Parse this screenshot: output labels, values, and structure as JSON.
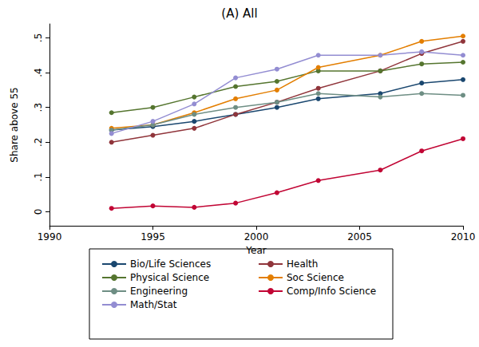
{
  "chart_data": {
    "type": "line",
    "title": "(A) All",
    "x_label": "Year",
    "y_label": "Share above 55",
    "x": [
      1993,
      1995,
      1997,
      1999,
      2001,
      2003,
      2006,
      2008,
      2010
    ],
    "xlim": [
      1990,
      2010
    ],
    "xticks": [
      1990,
      1995,
      2000,
      2005,
      2010
    ],
    "ylim": [
      -0.04,
      0.54
    ],
    "yticks": [
      0,
      {
        "value": 0.1,
        "label": ".1"
      },
      {
        "value": 0.2,
        "label": ".2"
      },
      {
        "value": 0.3,
        "label": ".3"
      },
      {
        "value": 0.4,
        "label": ".4"
      },
      {
        "value": 0.5,
        "label": ".5"
      }
    ],
    "grid": false,
    "legend": "bottom",
    "marker": "circle",
    "series": [
      {
        "name": "Bio/Life Sciences",
        "color": "#1a476f",
        "values": [
          0.235,
          0.245,
          0.26,
          0.28,
          0.3,
          0.325,
          0.34,
          0.37,
          0.38
        ]
      },
      {
        "name": "Health",
        "color": "#90353b",
        "values": [
          0.2,
          0.22,
          0.24,
          0.28,
          0.315,
          0.355,
          0.405,
          0.455,
          0.49
        ]
      },
      {
        "name": "Physical Science",
        "color": "#55752f",
        "values": [
          0.285,
          0.3,
          0.33,
          0.36,
          0.375,
          0.405,
          0.405,
          0.425,
          0.43
        ]
      },
      {
        "name": "Soc Science",
        "color": "#e37e00",
        "values": [
          0.24,
          0.25,
          0.285,
          0.325,
          0.35,
          0.415,
          0.45,
          0.49,
          0.505
        ]
      },
      {
        "name": "Engineering",
        "color": "#6e8e84",
        "values": [
          0.235,
          0.25,
          0.28,
          0.3,
          0.315,
          0.34,
          0.33,
          0.34,
          0.335
        ]
      },
      {
        "name": "Comp/Info Science",
        "color": "#c10534",
        "values": [
          0.01,
          0.017,
          0.013,
          0.025,
          0.055,
          0.09,
          0.12,
          0.175,
          0.21
        ]
      },
      {
        "name": "Math/Stat",
        "color": "#938dd2",
        "values": [
          0.225,
          0.26,
          0.31,
          0.385,
          0.41,
          0.45,
          0.45,
          0.46,
          0.45
        ]
      }
    ]
  }
}
